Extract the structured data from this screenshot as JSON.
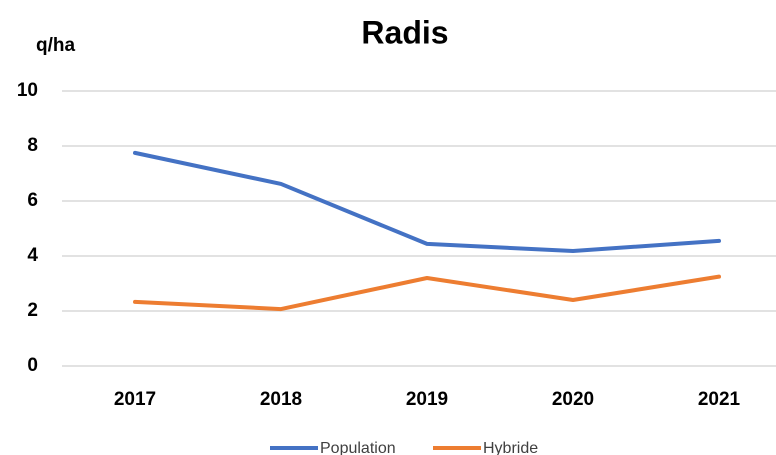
{
  "chart_data": {
    "type": "line",
    "title": "Radis",
    "y_label": "q/ha",
    "categories": [
      "2017",
      "2018",
      "2019",
      "2020",
      "2021"
    ],
    "series": [
      {
        "name": "Population",
        "color": "#4472c4",
        "values": [
          7.75,
          6.62,
          4.44,
          4.18,
          4.55
        ]
      },
      {
        "name": "Hybride",
        "color": "#ed7d31",
        "values": [
          2.33,
          2.07,
          3.2,
          2.4,
          3.25
        ]
      }
    ],
    "ylim": [
      0,
      10
    ],
    "yticks": [
      0,
      2,
      4,
      6,
      8,
      10
    ],
    "grid": true,
    "legend": "bottom"
  }
}
